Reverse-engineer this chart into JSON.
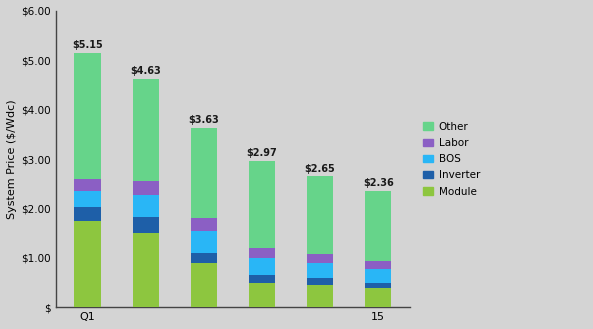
{
  "ylabel": "System Price ($/Wdc)",
  "bar_labels": [
    "$5.15",
    "$4.63",
    "$3.63",
    "$2.97",
    "$2.65",
    "$2.36"
  ],
  "components": [
    "Module",
    "Inverter",
    "BOS",
    "Labor",
    "Other"
  ],
  "colors": [
    "#8dc63f",
    "#1e5fa8",
    "#29b6f6",
    "#8b5fc4",
    "#66d48a"
  ],
  "data": [
    [
      1.75,
      0.28,
      0.32,
      0.25,
      2.55
    ],
    [
      1.5,
      0.32,
      0.45,
      0.28,
      2.08
    ],
    [
      0.9,
      0.2,
      0.45,
      0.25,
      1.83
    ],
    [
      0.5,
      0.15,
      0.35,
      0.2,
      1.77
    ],
    [
      0.45,
      0.14,
      0.3,
      0.18,
      1.58
    ],
    [
      0.38,
      0.12,
      0.28,
      0.16,
      1.42
    ]
  ],
  "ylim": [
    0,
    6.0
  ],
  "yticks": [
    0,
    1.0,
    2.0,
    3.0,
    4.0,
    5.0,
    6.0
  ],
  "ytick_labels": [
    "$",
    "$1.00",
    "$2.00",
    "$3.00",
    "$4.00",
    "$5.00",
    "$6.00"
  ],
  "background_color": "#d4d4d4",
  "fig_color": "#d4d4d4",
  "bar_width": 0.45,
  "legend_labels": [
    "Other",
    "Labor",
    "BOS",
    "Inverter",
    "Module"
  ],
  "legend_colors": [
    "#66d48a",
    "#8b5fc4",
    "#29b6f6",
    "#1e5fa8",
    "#8dc63f"
  ]
}
